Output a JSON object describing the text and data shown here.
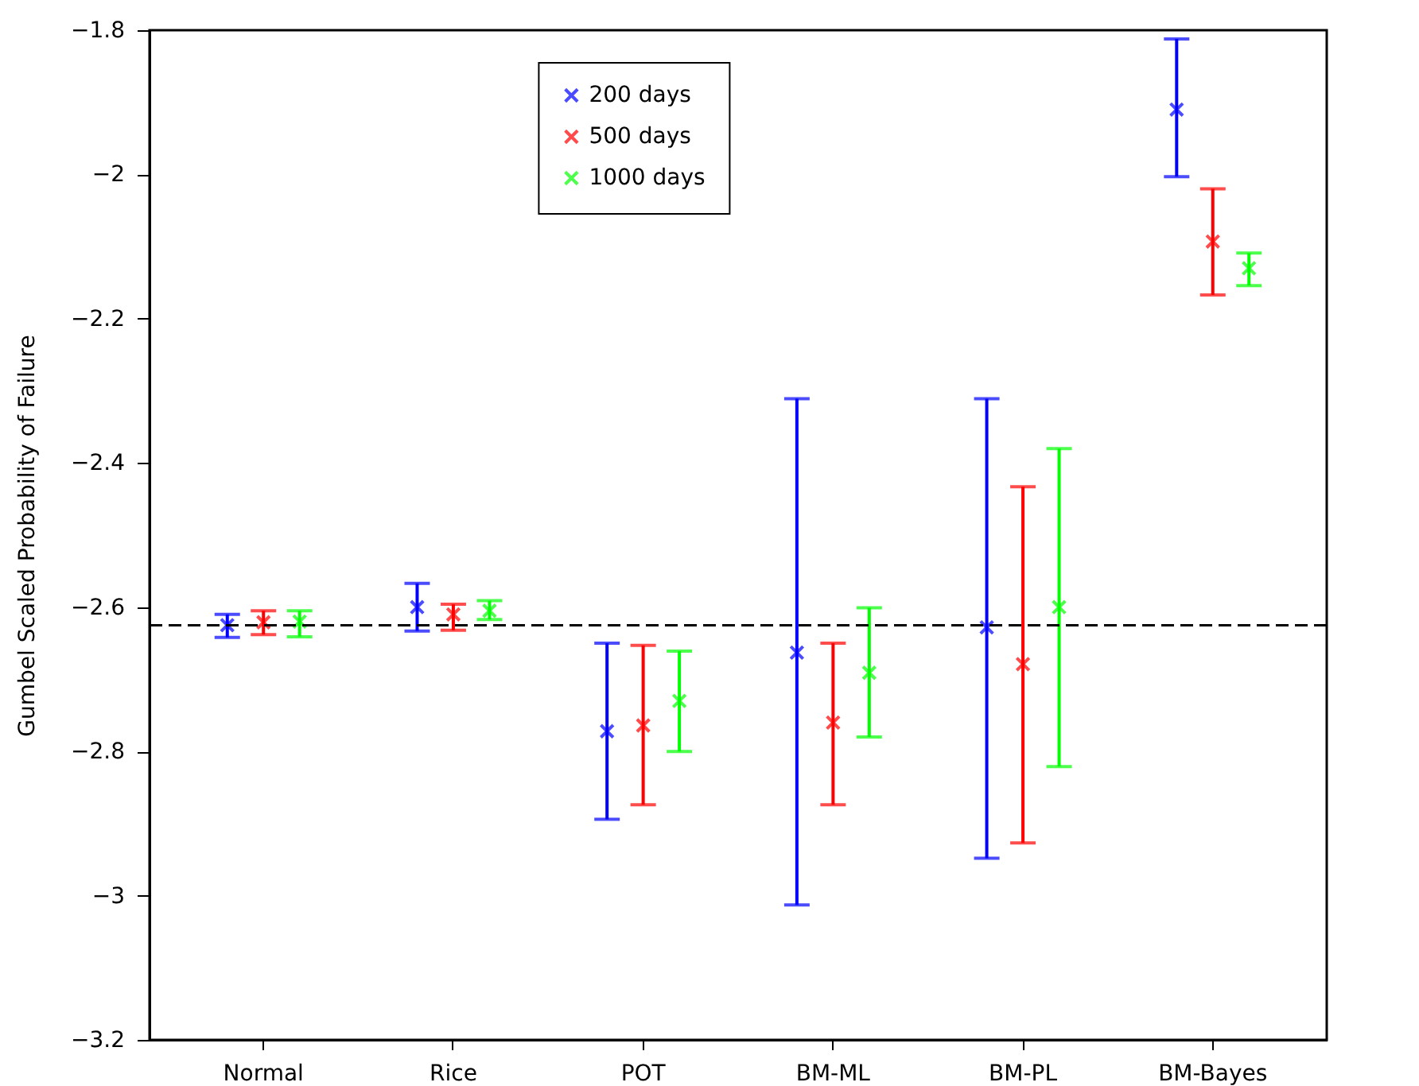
{
  "chart_data": {
    "type": "scatter",
    "ylabel": "Gumbel Scaled Probability of Failure",
    "categories": [
      "Normal",
      "Rice",
      "POT",
      "BM-ML",
      "BM-PL",
      "BM-Bayes"
    ],
    "ylim": [
      -3.2,
      -1.8
    ],
    "yticks": [
      -3.2,
      -3,
      -2.8,
      -2.6,
      -2.4,
      -2.2,
      -2,
      -1.8
    ],
    "marker": "cross",
    "grid": false,
    "legend": "top",
    "series": [
      {
        "name": "200 days",
        "color": "#0000ff",
        "values": [
          -2.625,
          -2.6,
          -2.772,
          -2.663,
          -2.628,
          -1.91
        ],
        "errors": [
          [
            -2.642,
            -2.61
          ],
          [
            -2.633,
            -2.567
          ],
          [
            -2.894,
            -2.65
          ],
          [
            -3.013,
            -2.311
          ],
          [
            -2.948,
            -2.311
          ],
          [
            -2.003,
            -1.812
          ]
        ]
      },
      {
        "name": "500 days",
        "color": "#ff0000",
        "values": [
          -2.621,
          -2.61,
          -2.764,
          -2.76,
          -2.679,
          -2.093
        ],
        "errors": [
          [
            -2.638,
            -2.605
          ],
          [
            -2.632,
            -2.596
          ],
          [
            -2.874,
            -2.653
          ],
          [
            -2.874,
            -2.65
          ],
          [
            -2.927,
            -2.433
          ],
          [
            -2.167,
            -2.02
          ]
        ]
      },
      {
        "name": "1000 days",
        "color": "#00ff00",
        "values": [
          -2.62,
          -2.605,
          -2.73,
          -2.691,
          -2.6,
          -2.13
        ],
        "errors": [
          [
            -2.641,
            -2.605
          ],
          [
            -2.617,
            -2.591
          ],
          [
            -2.8,
            -2.661
          ],
          [
            -2.78,
            -2.601
          ],
          [
            -2.821,
            -2.38
          ],
          [
            -2.154,
            -2.109
          ]
        ]
      }
    ],
    "ref_lines": [
      {
        "axis": "y",
        "value": -2.625,
        "color": "#000000",
        "line_style": "dashed"
      }
    ]
  }
}
